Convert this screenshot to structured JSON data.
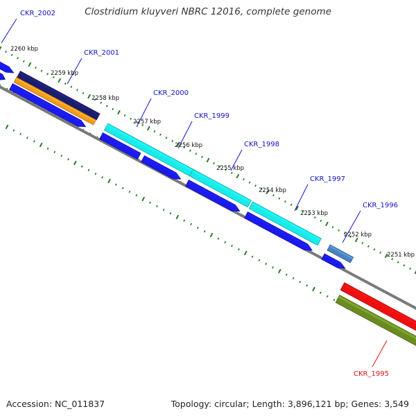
{
  "title": "Clostridium kluyveri NBRC 12016, complete genome",
  "footer": {
    "accession": "Accession: NC_011837",
    "summary": "Topology: circular; Length: 3,896,121 bp; Genes: 3,549"
  },
  "colors": {
    "blue": "#1a1af0",
    "cyan": "#19eaea",
    "navy": "#1c1c6e",
    "orange": "#f59a22",
    "steelblue": "#4a82c0",
    "red": "#ee1010",
    "olive": "#6a8a22",
    "tick": "#1f7a1f",
    "backbone": "#7a7a7a",
    "label_blue": "#1111cc",
    "label_red": "#dd1111"
  },
  "ruler": [
    "2260 kbp",
    "2259 kbp",
    "2258 kbp",
    "2257 kbp",
    "2256 kbp",
    "2255 kbp",
    "2254 kbp",
    "2253 kbp",
    "2252 kbp",
    "2251 kbp"
  ],
  "gene_labels": [
    {
      "text": "CKR_2002",
      "color": "label_blue"
    },
    {
      "text": "CKR_2001",
      "color": "label_blue"
    },
    {
      "text": "CKR_2000",
      "color": "label_blue"
    },
    {
      "text": "CKR_1999",
      "color": "label_blue"
    },
    {
      "text": "CKR_1998",
      "color": "label_blue"
    },
    {
      "text": "CKR_1997",
      "color": "label_blue"
    },
    {
      "text": "CKR_1996",
      "color": "label_blue"
    },
    {
      "text": "CKR_1995",
      "color": "label_red"
    }
  ]
}
